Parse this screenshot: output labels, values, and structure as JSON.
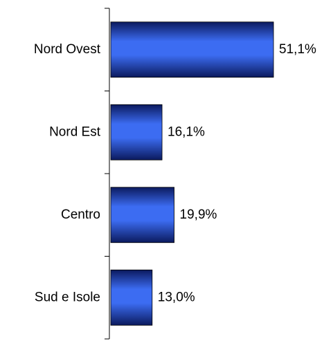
{
  "chart_data": {
    "type": "bar",
    "orientation": "horizontal",
    "categories": [
      "Nord Ovest",
      "Nord Est",
      "Centro",
      "Sud e Isole"
    ],
    "values": [
      51.1,
      16.1,
      19.9,
      13.0
    ],
    "value_labels": [
      "51,1%",
      "16,1%",
      "19,9%",
      "13,0%"
    ],
    "color": "#3c6cf2"
  }
}
